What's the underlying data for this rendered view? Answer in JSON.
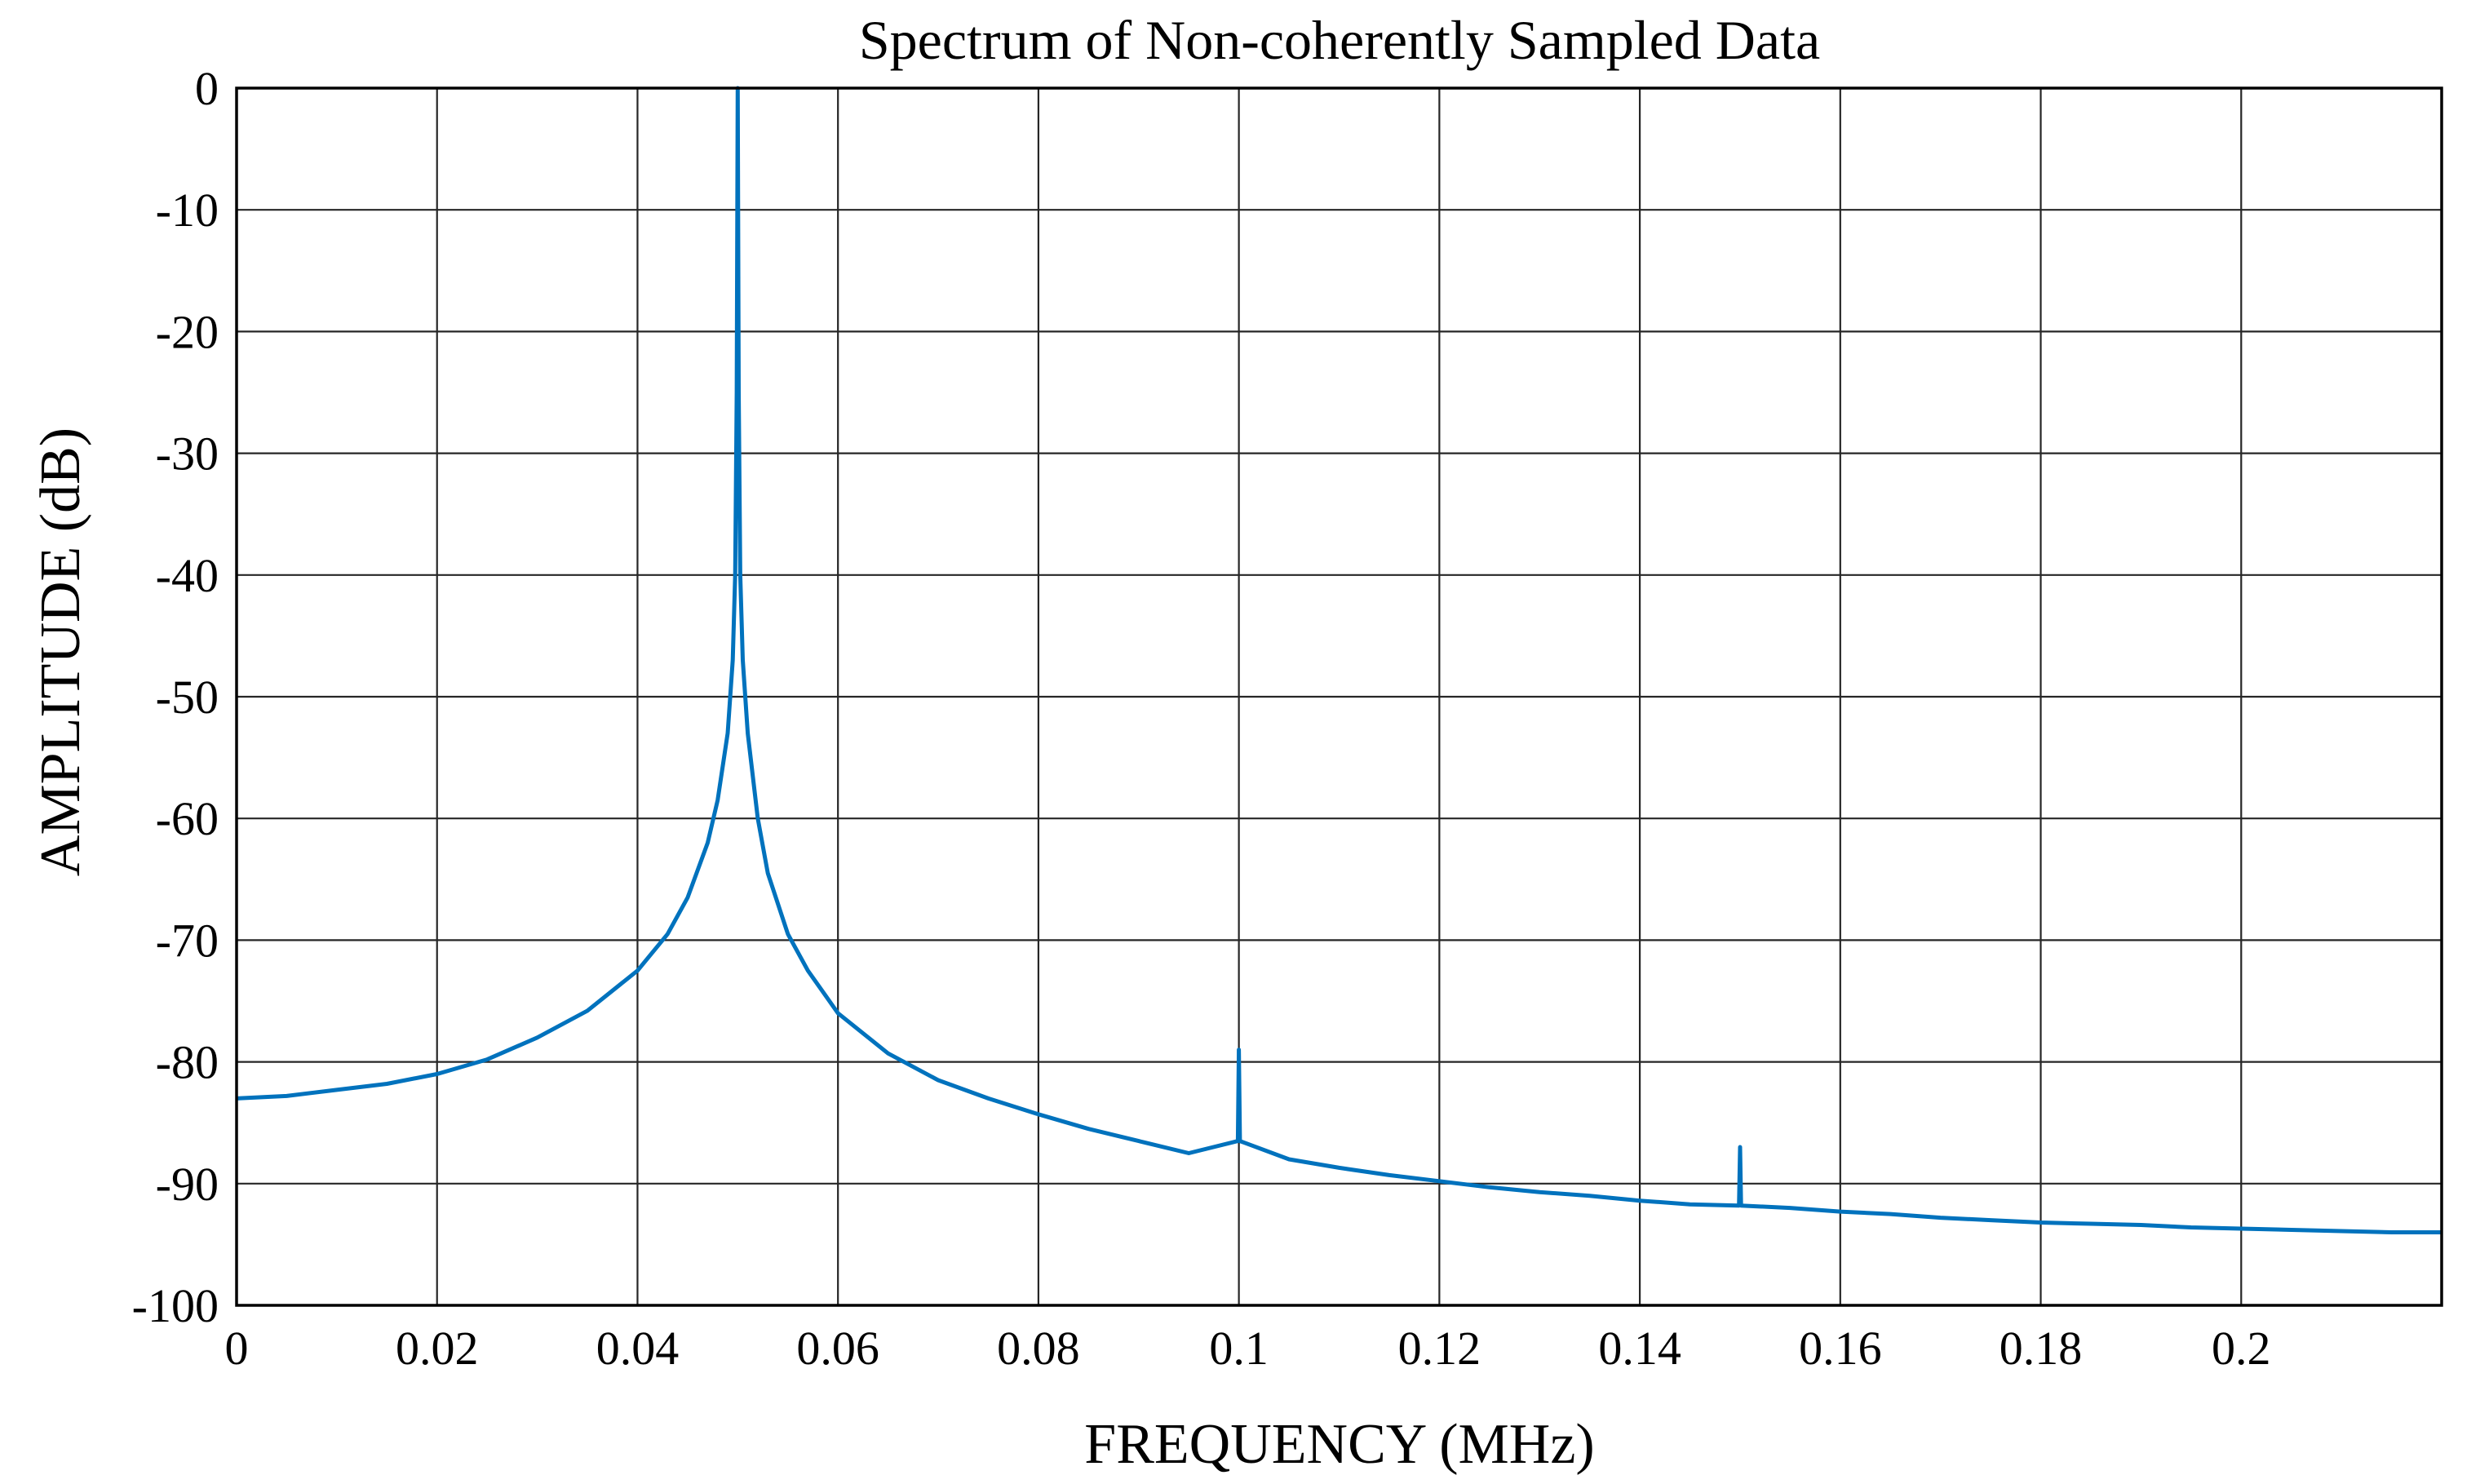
{
  "chart_data": {
    "type": "line",
    "title": "Spectrum of Non-coherently Sampled Data",
    "xlabel": "FREQUENCY (MHz)",
    "ylabel": "AMPLITUDE (dB)",
    "xlim": [
      0,
      0.22
    ],
    "ylim": [
      -100,
      0
    ],
    "grid": true,
    "legend": "none",
    "x_ticks": [
      0,
      0.02,
      0.04,
      0.06,
      0.08,
      0.1,
      0.12,
      0.14,
      0.16,
      0.18,
      0.2
    ],
    "x_tick_labels": [
      "0",
      "0.02",
      "0.04",
      "0.06",
      "0.08",
      "0.1",
      "0.12",
      "0.14",
      "0.16",
      "0.18",
      "0.2"
    ],
    "y_ticks": [
      0,
      -10,
      -20,
      -30,
      -40,
      -50,
      -60,
      -70,
      -80,
      -90,
      -100
    ],
    "y_tick_labels": [
      "0",
      "-10",
      "-20",
      "-30",
      "-40",
      "-50",
      "-60",
      "-70",
      "-80",
      "-90",
      "-100"
    ],
    "series": [
      {
        "name": "spectrum",
        "color": "#0072BD",
        "x": [
          0,
          0.005,
          0.01,
          0.015,
          0.02,
          0.025,
          0.03,
          0.035,
          0.04,
          0.043,
          0.045,
          0.047,
          0.048,
          0.049,
          0.0495,
          0.04975,
          0.0499,
          0.05,
          0.0501,
          0.05025,
          0.0505,
          0.051,
          0.052,
          0.053,
          0.055,
          0.057,
          0.06,
          0.065,
          0.07,
          0.075,
          0.08,
          0.085,
          0.09,
          0.095,
          0.0999,
          0.1,
          0.1001,
          0.105,
          0.11,
          0.115,
          0.12,
          0.125,
          0.13,
          0.135,
          0.14,
          0.145,
          0.1499,
          0.15,
          0.1501,
          0.155,
          0.16,
          0.165,
          0.17,
          0.175,
          0.18,
          0.185,
          0.19,
          0.195,
          0.2,
          0.205,
          0.21,
          0.215,
          0.22
        ],
        "values": [
          -83,
          -82.8,
          -82.3,
          -81.8,
          -81,
          -79.8,
          -78,
          -75.8,
          -72.5,
          -69.5,
          -66.5,
          -62,
          -58.5,
          -53,
          -47,
          -40,
          -25,
          0,
          -25,
          -40,
          -47,
          -53,
          -60,
          -64.5,
          -69.5,
          -72.5,
          -76,
          -79.3,
          -81.5,
          -83,
          -84.3,
          -85.5,
          -86.5,
          -87.5,
          -86.5,
          -79,
          -86.5,
          -88,
          -88.7,
          -89.3,
          -89.8,
          -90.3,
          -90.7,
          -91,
          -91.4,
          -91.7,
          -91.8,
          -87,
          -91.8,
          -92,
          -92.3,
          -92.5,
          -92.8,
          -93,
          -93.2,
          -93.3,
          -93.4,
          -93.6,
          -93.7,
          -93.8,
          -93.9,
          -94,
          -94
        ]
      }
    ]
  }
}
